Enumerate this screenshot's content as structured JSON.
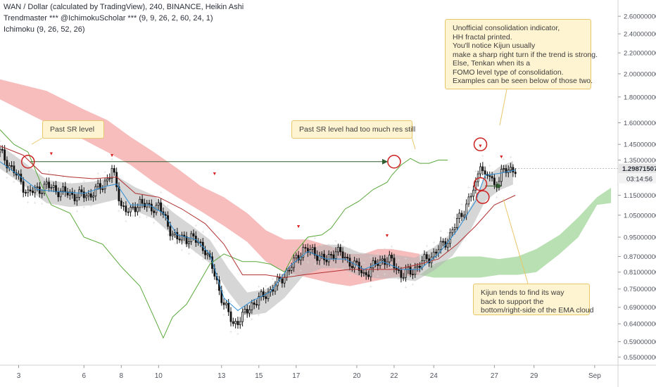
{
  "header": {
    "line1": "WAN / Dollar (calculated by TradingView), 240, BINANCE, Heikin Ashi",
    "line2": "Trendmaster *** @IchimokuScholar *** (9, 9, 26, 2, 60, 24, 1)",
    "line3": "Ichimoku (9, 26, 52, 26)"
  },
  "chart_data": {
    "type": "candlestick",
    "title": "WAN / Dollar (calculated by TradingView), 240, BINANCE, Heikin Ashi",
    "y_scale": "log",
    "ylim": [
      0.53,
      2.8
    ],
    "y_ticks": [
      "2.60000000",
      "2.40000000",
      "2.20000000",
      "2.00000000",
      "1.80000000",
      "1.60000000",
      "1.45000000",
      "1.35000000",
      "1.25000000",
      "1.15000000",
      "1.05000000",
      "0.95000000",
      "0.87000000",
      "0.81000000",
      "0.75000000",
      "0.69000000",
      "0.64000000",
      "0.59000000",
      "0.55000000"
    ],
    "y_tick_values": [
      2.6,
      2.4,
      2.2,
      2.0,
      1.8,
      1.6,
      1.45,
      1.35,
      1.25,
      1.15,
      1.05,
      0.95,
      0.87,
      0.81,
      0.75,
      0.69,
      0.64,
      0.59,
      0.55
    ],
    "x_ticks": [
      "3",
      "6",
      "8",
      "10",
      "13",
      "15",
      "17",
      "20",
      "22",
      "24",
      "27",
      "29",
      "Sep"
    ],
    "x_tick_index": [
      8,
      36,
      52,
      68,
      95,
      111,
      127,
      153,
      169,
      186,
      212,
      229,
      255
    ],
    "x_index_range": [
      0,
      265
    ],
    "last_price": "1.29871507",
    "countdown": "03:14:56",
    "colors": {
      "up": "#ffffff",
      "down": "#111111",
      "wick": "#111111",
      "kumo_bear": "#f4a6a6",
      "kumo_bull": "#a8d8a0",
      "tenkan": "#2e8fd6",
      "kijun": "#b03030",
      "chikou": "#5aa83c",
      "ema_cloud": "#b5b5b5",
      "fractal": "#d8d8d8",
      "price_tag": "#e6e6e6",
      "annotation_circle": "#cc2222",
      "arrow": "#2f5e2f"
    },
    "anchors": [
      {
        "i": 0,
        "v": 1.4
      },
      {
        "i": 6,
        "v": 1.28
      },
      {
        "i": 12,
        "v": 1.16
      },
      {
        "i": 20,
        "v": 1.2
      },
      {
        "i": 26,
        "v": 1.17
      },
      {
        "i": 32,
        "v": 1.15
      },
      {
        "i": 38,
        "v": 1.15
      },
      {
        "i": 44,
        "v": 1.2
      },
      {
        "i": 48,
        "v": 1.29
      },
      {
        "i": 52,
        "v": 1.1
      },
      {
        "i": 56,
        "v": 1.06
      },
      {
        "i": 60,
        "v": 1.12
      },
      {
        "i": 64,
        "v": 1.08
      },
      {
        "i": 68,
        "v": 1.1
      },
      {
        "i": 72,
        "v": 1.0
      },
      {
        "i": 76,
        "v": 0.94
      },
      {
        "i": 82,
        "v": 0.95
      },
      {
        "i": 88,
        "v": 0.9
      },
      {
        "i": 92,
        "v": 0.8
      },
      {
        "i": 96,
        "v": 0.7
      },
      {
        "i": 100,
        "v": 0.64
      },
      {
        "i": 104,
        "v": 0.66
      },
      {
        "i": 108,
        "v": 0.7
      },
      {
        "i": 112,
        "v": 0.72
      },
      {
        "i": 118,
        "v": 0.76
      },
      {
        "i": 124,
        "v": 0.82
      },
      {
        "i": 130,
        "v": 0.9
      },
      {
        "i": 136,
        "v": 0.88
      },
      {
        "i": 140,
        "v": 0.85
      },
      {
        "i": 144,
        "v": 0.9
      },
      {
        "i": 148,
        "v": 0.86
      },
      {
        "i": 152,
        "v": 0.84
      },
      {
        "i": 156,
        "v": 0.8
      },
      {
        "i": 160,
        "v": 0.83
      },
      {
        "i": 164,
        "v": 0.86
      },
      {
        "i": 168,
        "v": 0.85
      },
      {
        "i": 172,
        "v": 0.8
      },
      {
        "i": 176,
        "v": 0.81
      },
      {
        "i": 180,
        "v": 0.84
      },
      {
        "i": 186,
        "v": 0.88
      },
      {
        "i": 192,
        "v": 0.94
      },
      {
        "i": 196,
        "v": 1.02
      },
      {
        "i": 200,
        "v": 1.1
      },
      {
        "i": 204,
        "v": 1.2
      },
      {
        "i": 206,
        "v": 1.35
      },
      {
        "i": 208,
        "v": 1.24
      },
      {
        "i": 210,
        "v": 1.26
      },
      {
        "i": 212,
        "v": 1.2
      },
      {
        "i": 215,
        "v": 1.27
      },
      {
        "i": 218,
        "v": 1.29
      },
      {
        "i": 221,
        "v": 1.3
      }
    ],
    "series": [
      {
        "kind": "tenkan",
        "points": [
          [
            0,
            1.34
          ],
          [
            8,
            1.26
          ],
          [
            16,
            1.18
          ],
          [
            24,
            1.17
          ],
          [
            36,
            1.16
          ],
          [
            46,
            1.2
          ],
          [
            50,
            1.21
          ],
          [
            56,
            1.1
          ],
          [
            64,
            1.1
          ],
          [
            70,
            1.06
          ],
          [
            76,
            0.96
          ],
          [
            84,
            0.94
          ],
          [
            90,
            0.88
          ],
          [
            96,
            0.72
          ],
          [
            102,
            0.68
          ],
          [
            108,
            0.71
          ],
          [
            116,
            0.74
          ],
          [
            124,
            0.83
          ],
          [
            132,
            0.89
          ],
          [
            140,
            0.86
          ],
          [
            148,
            0.86
          ],
          [
            156,
            0.82
          ],
          [
            164,
            0.85
          ],
          [
            172,
            0.82
          ],
          [
            180,
            0.82
          ],
          [
            188,
            0.88
          ],
          [
            196,
            0.98
          ],
          [
            204,
            1.12
          ],
          [
            208,
            1.26
          ],
          [
            214,
            1.27
          ],
          [
            221,
            1.29
          ]
        ]
      },
      {
        "kind": "kijun",
        "points": [
          [
            0,
            1.44
          ],
          [
            10,
            1.38
          ],
          [
            18,
            1.27
          ],
          [
            30,
            1.25
          ],
          [
            40,
            1.24
          ],
          [
            50,
            1.25
          ],
          [
            58,
            1.16
          ],
          [
            68,
            1.14
          ],
          [
            78,
            1.08
          ],
          [
            88,
            1.01
          ],
          [
            96,
            0.92
          ],
          [
            104,
            0.8
          ],
          [
            114,
            0.8
          ],
          [
            122,
            0.79
          ],
          [
            130,
            0.8
          ],
          [
            140,
            0.81
          ],
          [
            150,
            0.82
          ],
          [
            160,
            0.82
          ],
          [
            170,
            0.82
          ],
          [
            180,
            0.84
          ],
          [
            188,
            0.86
          ],
          [
            196,
            0.92
          ],
          [
            204,
            1.0
          ],
          [
            212,
            1.1
          ],
          [
            221,
            1.15
          ]
        ]
      },
      {
        "kind": "chikou",
        "points": [
          [
            0,
            1.55
          ],
          [
            6,
            1.45
          ],
          [
            12,
            1.4
          ],
          [
            18,
            1.2
          ],
          [
            22,
            1.1
          ],
          [
            30,
            1.06
          ],
          [
            36,
            0.95
          ],
          [
            44,
            0.92
          ],
          [
            52,
            0.83
          ],
          [
            60,
            0.76
          ],
          [
            66,
            0.66
          ],
          [
            70,
            0.6
          ],
          [
            74,
            0.66
          ],
          [
            80,
            0.7
          ],
          [
            86,
            0.78
          ],
          [
            90,
            0.84
          ],
          [
            96,
            0.88
          ],
          [
            104,
            0.85
          ],
          [
            110,
            0.85
          ],
          [
            116,
            0.84
          ],
          [
            122,
            0.81
          ],
          [
            126,
            0.88
          ],
          [
            132,
            0.95
          ],
          [
            138,
            0.96
          ],
          [
            142,
            0.99
          ],
          [
            148,
            1.08
          ],
          [
            154,
            1.12
          ],
          [
            160,
            1.18
          ],
          [
            166,
            1.22
          ],
          [
            168,
            1.26
          ],
          [
            172,
            1.32
          ],
          [
            176,
            1.36
          ],
          [
            180,
            1.33
          ],
          [
            184,
            1.33
          ],
          [
            188,
            1.35
          ],
          [
            192,
            1.35
          ]
        ]
      },
      {
        "kind": "ema_center",
        "points": [
          [
            0,
            1.37
          ],
          [
            10,
            1.27
          ],
          [
            20,
            1.17
          ],
          [
            30,
            1.15
          ],
          [
            40,
            1.16
          ],
          [
            50,
            1.19
          ],
          [
            58,
            1.13
          ],
          [
            66,
            1.09
          ],
          [
            74,
            1.01
          ],
          [
            82,
            0.95
          ],
          [
            90,
            0.89
          ],
          [
            98,
            0.78
          ],
          [
            106,
            0.7
          ],
          [
            114,
            0.71
          ],
          [
            122,
            0.76
          ],
          [
            130,
            0.84
          ],
          [
            138,
            0.87
          ],
          [
            146,
            0.87
          ],
          [
            154,
            0.84
          ],
          [
            162,
            0.83
          ],
          [
            170,
            0.83
          ],
          [
            178,
            0.82
          ],
          [
            186,
            0.86
          ],
          [
            194,
            0.92
          ],
          [
            202,
            1.04
          ],
          [
            208,
            1.18
          ],
          [
            214,
            1.24
          ],
          [
            221,
            1.28
          ]
        ]
      },
      {
        "kind": "kumo_bear_top",
        "points": [
          [
            0,
            1.95
          ],
          [
            20,
            1.85
          ],
          [
            36,
            1.7
          ],
          [
            46,
            1.62
          ],
          [
            56,
            1.5
          ],
          [
            66,
            1.4
          ],
          [
            76,
            1.3
          ],
          [
            86,
            1.2
          ],
          [
            96,
            1.14
          ],
          [
            106,
            1.06
          ],
          [
            114,
            0.98
          ],
          [
            122,
            0.94
          ],
          [
            132,
            0.94
          ],
          [
            142,
            0.91
          ],
          [
            150,
            0.88
          ],
          [
            156,
            0.88
          ],
          [
            162,
            0.9
          ],
          [
            168,
            0.9
          ],
          [
            180,
            0.88
          ]
        ]
      },
      {
        "kind": "kumo_bear_bottom",
        "points": [
          [
            0,
            1.78
          ],
          [
            20,
            1.6
          ],
          [
            36,
            1.48
          ],
          [
            46,
            1.4
          ],
          [
            56,
            1.32
          ],
          [
            66,
            1.22
          ],
          [
            76,
            1.14
          ],
          [
            86,
            1.07
          ],
          [
            96,
            1.0
          ],
          [
            106,
            0.93
          ],
          [
            114,
            0.85
          ],
          [
            122,
            0.81
          ],
          [
            132,
            0.79
          ],
          [
            142,
            0.77
          ],
          [
            150,
            0.76
          ],
          [
            156,
            0.77
          ],
          [
            162,
            0.78
          ],
          [
            168,
            0.79
          ],
          [
            180,
            0.8
          ]
        ]
      },
      {
        "kind": "kumo_bull_top",
        "points": [
          [
            180,
            0.8
          ],
          [
            186,
            0.84
          ],
          [
            196,
            0.87
          ],
          [
            206,
            0.87
          ],
          [
            214,
            0.86
          ],
          [
            222,
            0.87
          ],
          [
            230,
            0.9
          ],
          [
            240,
            0.96
          ],
          [
            248,
            1.04
          ],
          [
            256,
            1.14
          ],
          [
            262,
            1.19
          ]
        ]
      },
      {
        "kind": "kumo_bull_bottom",
        "points": [
          [
            180,
            0.8
          ],
          [
            186,
            0.79
          ],
          [
            196,
            0.79
          ],
          [
            206,
            0.79
          ],
          [
            214,
            0.8
          ],
          [
            222,
            0.8
          ],
          [
            230,
            0.81
          ],
          [
            240,
            0.88
          ],
          [
            248,
            0.95
          ],
          [
            256,
            1.1
          ],
          [
            262,
            1.11
          ]
        ]
      }
    ],
    "fractal_highs": [
      [
        22,
        1.38
      ],
      [
        48,
        1.37
      ],
      [
        92,
        1.26
      ],
      [
        128,
        0.99
      ],
      [
        166,
        0.95
      ],
      [
        206,
        1.43
      ],
      [
        215,
        1.36
      ]
    ],
    "annotations": [
      {
        "text_lines": [
          "Past SR level"
        ]
      },
      {
        "text_lines": [
          "Past SR level had too much res still"
        ]
      },
      {
        "text_lines": [
          "Unofficial consolidation indicator,",
          "HH fractal printed.",
          "",
          "You'll notice Kijun usually",
          "make a sharp right turn if the trend is strong.",
          "Else, Tenkan when its a",
          "FOMO level type of consolidation.",
          "",
          "Examples can be seen below of those two."
        ]
      },
      {
        "text_lines": [
          "Kijun tends to find its way",
          "back to support the",
          "bottom/right-side of the EMA cloud"
        ]
      }
    ],
    "circles": [
      {
        "i": 12,
        "v": 1.34
      },
      {
        "i": 169,
        "v": 1.34
      },
      {
        "i": 206,
        "v": 1.45
      },
      {
        "i": 206,
        "v": 1.21
      },
      {
        "i": 207,
        "v": 1.14
      }
    ],
    "arrows": [
      {
        "from": [
          13,
          1.34
        ],
        "to": [
          166,
          1.34
        ]
      },
      {
        "from": [
          208,
          1.2
        ],
        "to": [
          215,
          1.2
        ]
      }
    ]
  }
}
